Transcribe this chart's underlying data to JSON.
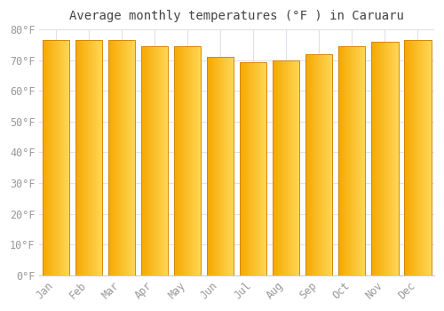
{
  "title": "Average monthly temperatures (°F ) in Caruaru",
  "months": [
    "Jan",
    "Feb",
    "Mar",
    "Apr",
    "May",
    "Jun",
    "Jul",
    "Aug",
    "Sep",
    "Oct",
    "Nov",
    "Dec"
  ],
  "values": [
    76.5,
    76.5,
    76.5,
    74.5,
    74.5,
    71.0,
    69.5,
    70.0,
    72.0,
    74.5,
    76.0,
    76.5
  ],
  "bar_color_dark": "#F5A800",
  "bar_color_light": "#FFD655",
  "bar_edge_color": "#D4870A",
  "background_color": "#FFFFFF",
  "grid_color": "#E0E0E8",
  "ylim": [
    0,
    80
  ],
  "yticks": [
    0,
    10,
    20,
    30,
    40,
    50,
    60,
    70,
    80
  ],
  "title_fontsize": 10,
  "tick_fontsize": 8.5,
  "tick_color": "#999999",
  "title_color": "#444444"
}
